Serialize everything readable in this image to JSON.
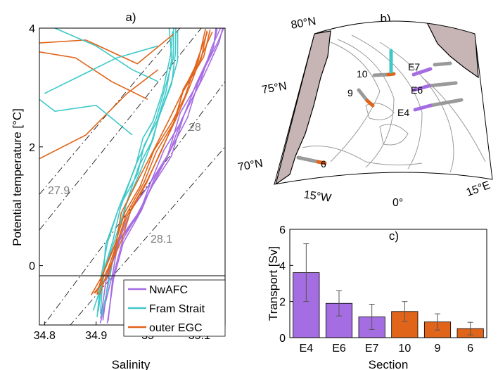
{
  "colors": {
    "nwafc": "#a56de2",
    "fram": "#40c8c8",
    "egc": "#e0641a",
    "isopycnal": "#000000",
    "isopycnal_label": "#7f7f7f",
    "land": "#c7b5b5",
    "bathy": "#9a9a9a",
    "section": "#9a9a9a",
    "bar_edge": "#000000"
  },
  "panel_a": {
    "label": "a)",
    "xlabel": "Salinity",
    "ylabel": "Potential temperature [°C]",
    "xticks": [
      "34.8",
      "34.9",
      "35",
      "35.1"
    ],
    "yticks": [
      "0",
      "2",
      "4"
    ],
    "isopycnal_labels": [
      "27.9",
      "28",
      "28.1"
    ],
    "legend": [
      "NwAFC",
      "Fram Strait",
      "outer EGC"
    ]
  },
  "panel_b": {
    "label": "b)",
    "lat_labels": [
      "80°N",
      "75°N",
      "70°N"
    ],
    "lon_labels": [
      "15°W",
      "0°",
      "15°E"
    ],
    "section_labels": [
      "10",
      "9",
      "6",
      "E7",
      "E6",
      "E4"
    ]
  },
  "chart_data": [
    {
      "type": "line",
      "panel": "a",
      "xlabel": "Salinity",
      "ylabel": "Potential temperature [°C]",
      "xlim": [
        34.79,
        35.15
      ],
      "ylim": [
        -1.0,
        4.0
      ],
      "series": [
        {
          "name": "NwAFC",
          "x": [
            34.915,
            34.93,
            34.95,
            34.98,
            35.01,
            35.04,
            35.07,
            35.1,
            35.13,
            35.14
          ],
          "y": [
            -0.9,
            -0.2,
            0.4,
            0.9,
            1.4,
            1.9,
            2.5,
            3.1,
            3.7,
            4.0
          ]
        },
        {
          "name": "Fram Strait",
          "x": [
            34.905,
            34.915,
            34.93,
            34.95,
            34.98,
            35.0,
            35.02,
            35.04,
            35.05,
            35.05
          ],
          "y": [
            -0.8,
            -0.2,
            0.4,
            1.0,
            1.6,
            2.1,
            2.5,
            3.0,
            3.5,
            4.0
          ]
        },
        {
          "name": "outer EGC",
          "x": [
            34.9,
            34.92,
            34.94,
            34.96,
            34.99,
            35.02,
            35.05,
            35.07,
            35.1,
            35.12
          ],
          "y": [
            -0.5,
            -0.1,
            0.4,
            0.9,
            1.4,
            1.9,
            2.4,
            2.9,
            3.5,
            4.0
          ]
        }
      ]
    },
    {
      "type": "bar",
      "panel": "c",
      "xlabel": "Section",
      "ylabel": "Transport [Sv]",
      "ylim": [
        0,
        6
      ],
      "yticks": [
        "0",
        "2",
        "4",
        "6"
      ],
      "categories": [
        "E4",
        "E6",
        "E7",
        "10",
        "9",
        "6"
      ],
      "values": [
        3.6,
        1.9,
        1.15,
        1.45,
        0.87,
        0.5
      ],
      "errors": [
        1.6,
        0.7,
        0.7,
        0.55,
        0.45,
        0.35
      ],
      "groups": [
        "nwafc",
        "nwafc",
        "nwafc",
        "egc",
        "egc",
        "egc"
      ]
    }
  ]
}
